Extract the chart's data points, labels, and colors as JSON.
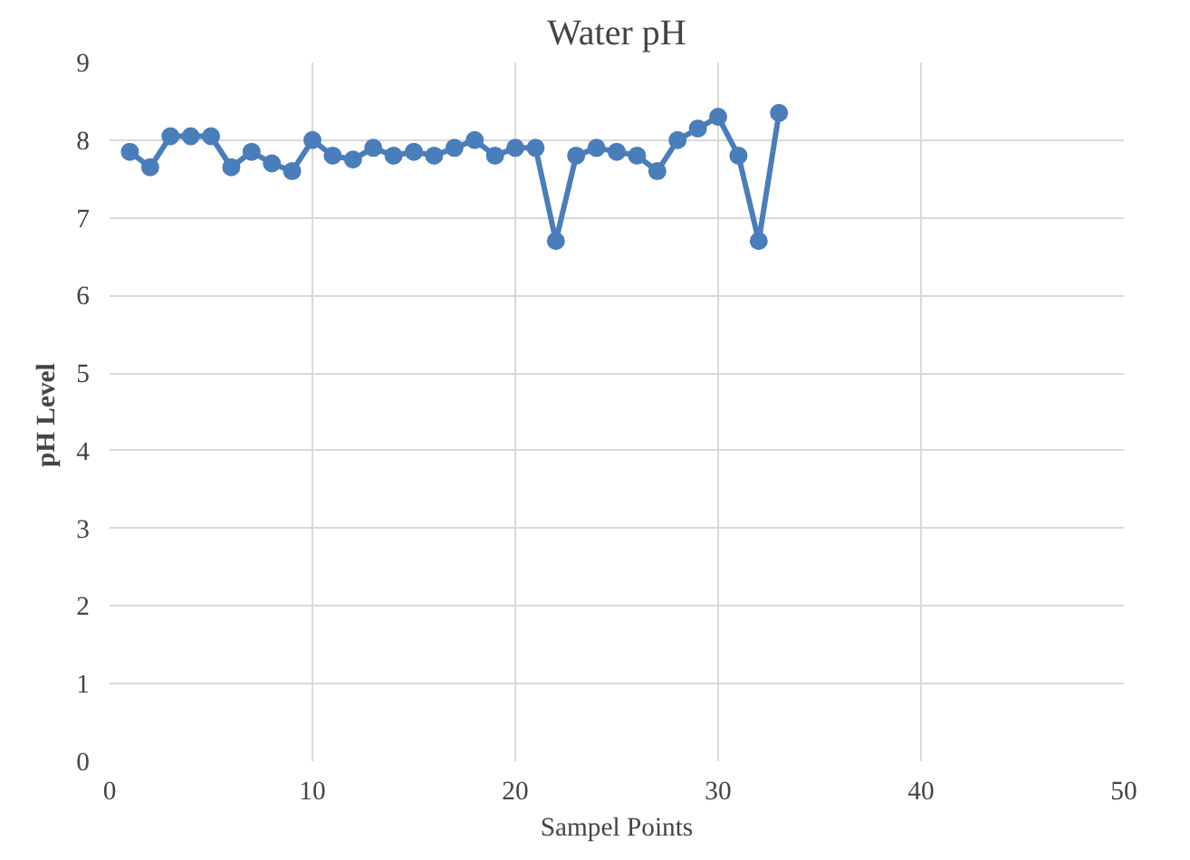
{
  "chart_data": {
    "type": "line",
    "title": "Water pH",
    "xlabel": "Sampel Points",
    "ylabel": "pH  Level",
    "x": [
      1,
      2,
      3,
      4,
      5,
      6,
      7,
      8,
      9,
      10,
      11,
      12,
      13,
      14,
      15,
      16,
      17,
      18,
      19,
      20,
      21,
      22,
      23,
      24,
      25,
      26,
      27,
      28,
      29,
      30,
      31,
      32,
      33
    ],
    "series": [
      {
        "color": "#4a7ebb",
        "values": [
          7.85,
          7.65,
          8.05,
          8.05,
          8.05,
          7.65,
          7.85,
          7.7,
          7.6,
          8.0,
          7.8,
          7.75,
          7.9,
          7.8,
          7.85,
          7.8,
          7.9,
          8.0,
          7.8,
          7.9,
          7.9,
          6.7,
          7.8,
          7.9,
          7.85,
          7.8,
          7.6,
          8.0,
          8.15,
          8.3,
          7.8,
          6.7,
          8.35
        ]
      }
    ],
    "xlim": [
      0,
      50
    ],
    "xticks": [
      0,
      10,
      20,
      30,
      40,
      50
    ],
    "ylim": [
      0,
      9
    ],
    "yticks": [
      0,
      1,
      2,
      3,
      4,
      5,
      6,
      7,
      8,
      9
    ],
    "grid": true,
    "marker": "circle",
    "line_style": "solid"
  }
}
